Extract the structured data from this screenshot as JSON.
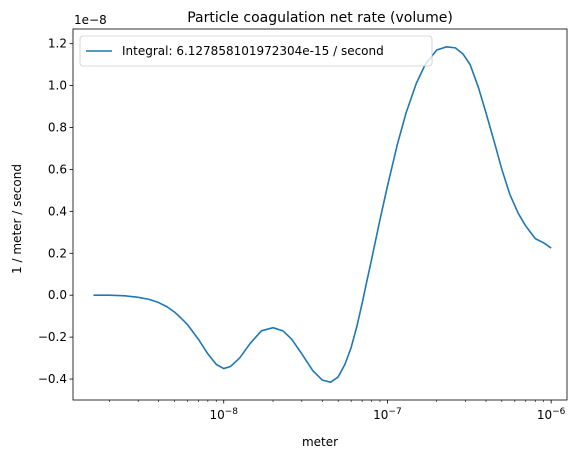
{
  "chart_data": {
    "type": "line",
    "title": "Particle coagulation net rate (volume)",
    "xlabel": "meter",
    "ylabel": "1 / meter / second",
    "x_scale": "log",
    "x_range": [
      1.2e-09,
      1.25e-06
    ],
    "y_range": [
      -0.5,
      1.27
    ],
    "y_scale_factor_label": "1e−8",
    "x_ticks": [
      {
        "value": 1e-08,
        "base": "10",
        "exp": "−8"
      },
      {
        "value": 1e-07,
        "base": "10",
        "exp": "−7"
      },
      {
        "value": 1e-06,
        "base": "10",
        "exp": "−6"
      }
    ],
    "y_ticks": [
      {
        "value": -0.4,
        "label": "−0.4"
      },
      {
        "value": -0.2,
        "label": "−0.2"
      },
      {
        "value": 0.0,
        "label": "0.0"
      },
      {
        "value": 0.2,
        "label": "0.2"
      },
      {
        "value": 0.4,
        "label": "0.4"
      },
      {
        "value": 0.6,
        "label": "0.6"
      },
      {
        "value": 0.8,
        "label": "0.8"
      },
      {
        "value": 1.0,
        "label": "1.0"
      },
      {
        "value": 1.2,
        "label": "1.2"
      }
    ],
    "legend": {
      "placement": "upper-left"
    },
    "series": [
      {
        "name": "Integral: 6.127858101972304e-15 / second",
        "color": "#1f77b4",
        "x": [
          1.6e-09,
          2e-09,
          2.5e-09,
          3e-09,
          3.5e-09,
          4e-09,
          4.5e-09,
          5e-09,
          5.5e-09,
          6e-09,
          7e-09,
          8e-09,
          9e-09,
          1e-08,
          1.1e-08,
          1.25e-08,
          1.45e-08,
          1.7e-08,
          2e-08,
          2.3e-08,
          2.6e-08,
          3e-08,
          3.5e-08,
          4e-08,
          4.5e-08,
          5e-08,
          5.5e-08,
          6e-08,
          6.5e-08,
          7e-08,
          7.5e-08,
          8e-08,
          9e-08,
          1e-07,
          1.15e-07,
          1.3e-07,
          1.5e-07,
          1.7e-07,
          2e-07,
          2.3e-07,
          2.6e-07,
          2.9e-07,
          3.2e-07,
          3.6e-07,
          4e-07,
          4.5e-07,
          5e-07,
          5.6e-07,
          6.3e-07,
          7e-07,
          8e-07,
          9e-07,
          1e-06
        ],
        "y": [
          0.0,
          0.0,
          -0.003,
          -0.01,
          -0.02,
          -0.035,
          -0.055,
          -0.08,
          -0.11,
          -0.14,
          -0.21,
          -0.28,
          -0.33,
          -0.35,
          -0.34,
          -0.3,
          -0.23,
          -0.17,
          -0.155,
          -0.17,
          -0.21,
          -0.28,
          -0.36,
          -0.405,
          -0.415,
          -0.39,
          -0.33,
          -0.25,
          -0.15,
          -0.04,
          0.07,
          0.17,
          0.36,
          0.52,
          0.72,
          0.87,
          1.01,
          1.1,
          1.17,
          1.185,
          1.18,
          1.15,
          1.1,
          0.99,
          0.87,
          0.73,
          0.6,
          0.48,
          0.39,
          0.33,
          0.27,
          0.25,
          0.225
        ]
      }
    ]
  }
}
